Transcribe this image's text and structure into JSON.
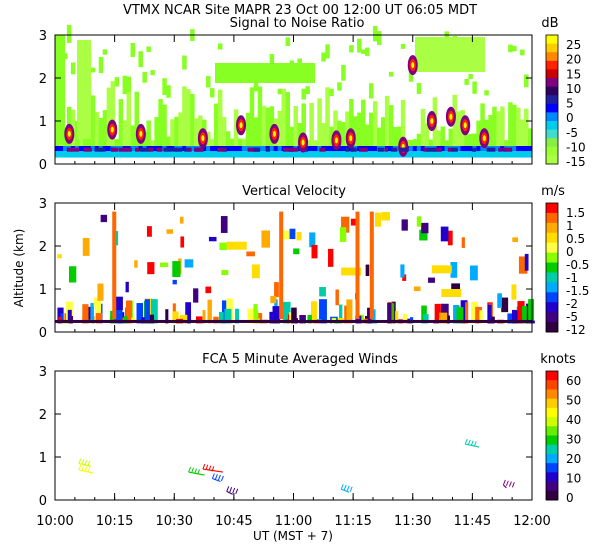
{
  "header": {
    "title": "VTMX   NCAR Site   MAPR 23 Oct 00   12:00 UT   06:05   MDT"
  },
  "x_axis": {
    "ticks": [
      "10:00",
      "10:15",
      "10:30",
      "10:45",
      "11:00",
      "11:15",
      "11:30",
      "11:45",
      "12:00"
    ],
    "label": "UT   (MST + 7)"
  },
  "chart_data": [
    {
      "type": "heatmap",
      "title": "Signal to Noise Ratio",
      "xrange": [
        "10:00",
        "12:00"
      ],
      "y_ticks": [
        "0",
        "1",
        "2",
        "3"
      ],
      "ylim": [
        0,
        3
      ],
      "colorbar": {
        "unit": "dB",
        "labels": [
          "25",
          "20",
          "15",
          "10",
          "5",
          "0",
          "-5",
          "-10",
          "-15"
        ],
        "colors": [
          "#ffff00",
          "#ffcc00",
          "#ff8800",
          "#ff2200",
          "#cc0000",
          "#800080",
          "#300060",
          "#2020a0",
          "#0000ff",
          "#0088ff",
          "#00ccee",
          "#40ddcc",
          "#88ee44",
          "#99ff33",
          "#aaff44"
        ]
      }
    },
    {
      "type": "heatmap",
      "title": "Vertical Velocity",
      "ylabel": "Altitude (km)",
      "xrange": [
        "10:00",
        "12:00"
      ],
      "y_ticks": [
        "0",
        "1",
        "2",
        "3"
      ],
      "ylim": [
        0,
        3
      ],
      "colorbar": {
        "unit": "m/s",
        "labels": [
          "1.5",
          "1",
          "0.5",
          "0",
          "-0.5",
          "-1",
          "-1.5",
          "-2",
          "-5",
          "-12"
        ],
        "colors": [
          "#ff0000",
          "#ff6600",
          "#ffaa00",
          "#ffdd00",
          "#ffff44",
          "#88ff00",
          "#00cc00",
          "#00ccaa",
          "#00aaff",
          "#0044ff",
          "#2200cc",
          "#400080",
          "#300040"
        ]
      }
    },
    {
      "type": "scatter",
      "title": "FCA 5 Minute Averaged Winds",
      "xrange": [
        "10:00",
        "12:00"
      ],
      "y_ticks": [
        "0",
        "1",
        "2",
        "3"
      ],
      "ylim": [
        0,
        3
      ],
      "colorbar": {
        "unit": "knots",
        "labels": [
          "60",
          "50",
          "40",
          "30",
          "20",
          "10",
          "0"
        ],
        "colors": [
          "#ff0000",
          "#ff4400",
          "#ff8800",
          "#ffcc00",
          "#ffff00",
          "#ccff00",
          "#66ee00",
          "#00cc00",
          "#00ccaa",
          "#00aaff",
          "#0044ff",
          "#2200cc",
          "#400080",
          "#300040"
        ]
      }
    }
  ]
}
